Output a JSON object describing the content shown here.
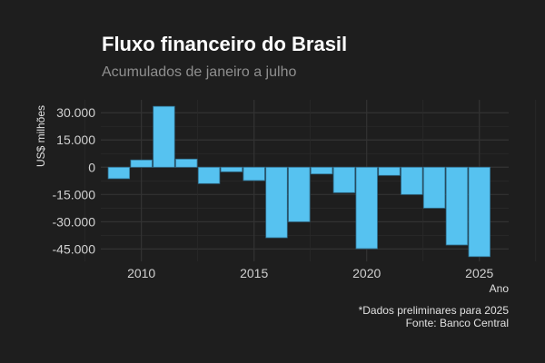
{
  "chart_data": {
    "type": "bar",
    "title": "Fluxo financeiro do Brasil",
    "subtitle": "Acumulados de janeiro a julho",
    "xlabel": "Ano",
    "ylabel": "US$ milhões",
    "caption_lines": [
      "*Dados preliminares para 2025",
      "Fonte: Banco Central"
    ],
    "x": [
      2009,
      2010,
      2011,
      2012,
      2013,
      2014,
      2015,
      2016,
      2017,
      2018,
      2019,
      2020,
      2021,
      2022,
      2023,
      2024,
      2025
    ],
    "values": [
      -6300,
      4000,
      33500,
      4500,
      -9000,
      -2500,
      -7300,
      -38800,
      -30000,
      -3700,
      -14000,
      -44800,
      -4500,
      -15000,
      -22500,
      -42800,
      -49200
    ],
    "xlim": [
      2008.2,
      2026.3
    ],
    "ylim": [
      -51800,
      37100
    ],
    "x_ticks": [
      2010,
      2015,
      2020,
      2025
    ],
    "y_ticks": [
      30000,
      15000,
      0,
      -15000,
      -30000,
      -45000
    ],
    "y_tick_labels": [
      "30.000",
      "15.000",
      "0",
      "-15.000",
      "-30.000",
      "-45.000"
    ],
    "grid": true,
    "colors": {
      "bar": "#56c2f0",
      "bar_edge": "#2f6f8f",
      "background": "#1e1e1e",
      "grid": "#2e2e2e"
    }
  }
}
